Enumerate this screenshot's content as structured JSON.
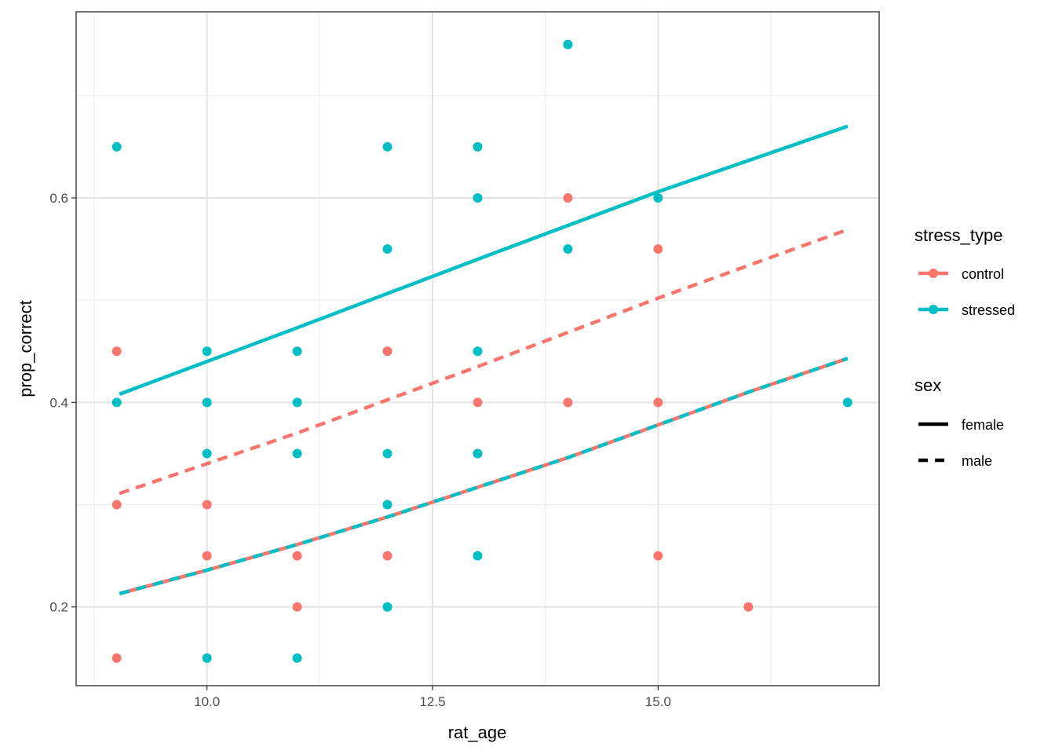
{
  "chart_data": {
    "type": "scatter",
    "xlabel": "rat_age",
    "ylabel": "prop_correct",
    "xlim": [
      8.55,
      17.45
    ],
    "ylim": [
      0.123,
      0.782
    ],
    "x_ticks": [
      10.0,
      12.5,
      15.0
    ],
    "x_tick_labels": [
      "10.0",
      "12.5",
      "15.0"
    ],
    "y_ticks": [
      0.2,
      0.4,
      0.6
    ],
    "y_tick_labels": [
      "0.2",
      "0.4",
      "0.6"
    ],
    "x_minor_ticks": [
      8.75,
      11.25,
      13.75,
      16.25
    ],
    "y_minor_ticks": [
      0.3,
      0.5,
      0.7
    ],
    "grid": true,
    "legend_position": "right",
    "colors": {
      "control": "#F8766D",
      "stressed": "#00BFC4"
    },
    "legends": [
      {
        "title": "stress_type",
        "entries": [
          {
            "label": "control",
            "color": "#F8766D",
            "linetype": "solid"
          },
          {
            "label": "stressed",
            "color": "#00BFC4",
            "linetype": "solid"
          }
        ]
      },
      {
        "title": "sex",
        "entries": [
          {
            "label": "female",
            "color": "#000000",
            "linetype": "solid"
          },
          {
            "label": "male",
            "color": "#000000",
            "linetype": "dashed"
          }
        ]
      }
    ],
    "points": [
      {
        "group": "stressed",
        "x": 9,
        "y": 0.65
      },
      {
        "group": "stressed",
        "x": 9,
        "y": 0.4
      },
      {
        "group": "control",
        "x": 9,
        "y": 0.45
      },
      {
        "group": "control",
        "x": 9,
        "y": 0.3
      },
      {
        "group": "control",
        "x": 9,
        "y": 0.15
      },
      {
        "group": "stressed",
        "x": 10,
        "y": 0.45
      },
      {
        "group": "stressed",
        "x": 10,
        "y": 0.4
      },
      {
        "group": "stressed",
        "x": 10,
        "y": 0.35
      },
      {
        "group": "control",
        "x": 10,
        "y": 0.3
      },
      {
        "group": "control",
        "x": 10,
        "y": 0.25
      },
      {
        "group": "stressed",
        "x": 10,
        "y": 0.15
      },
      {
        "group": "stressed",
        "x": 11,
        "y": 0.45
      },
      {
        "group": "stressed",
        "x": 11,
        "y": 0.4
      },
      {
        "group": "stressed",
        "x": 11,
        "y": 0.35
      },
      {
        "group": "control",
        "x": 11,
        "y": 0.25
      },
      {
        "group": "control",
        "x": 11,
        "y": 0.2
      },
      {
        "group": "stressed",
        "x": 11,
        "y": 0.15
      },
      {
        "group": "stressed",
        "x": 12,
        "y": 0.65
      },
      {
        "group": "stressed",
        "x": 12,
        "y": 0.55
      },
      {
        "group": "stressed",
        "x": 12,
        "y": 0.45
      },
      {
        "group": "control",
        "x": 12,
        "y": 0.45
      },
      {
        "group": "stressed",
        "x": 12,
        "y": 0.35
      },
      {
        "group": "stressed",
        "x": 12,
        "y": 0.3
      },
      {
        "group": "control",
        "x": 12,
        "y": 0.25
      },
      {
        "group": "stressed",
        "x": 12,
        "y": 0.2
      },
      {
        "group": "stressed",
        "x": 13,
        "y": 0.65
      },
      {
        "group": "stressed",
        "x": 13,
        "y": 0.6
      },
      {
        "group": "stressed",
        "x": 13,
        "y": 0.45
      },
      {
        "group": "control",
        "x": 13,
        "y": 0.4
      },
      {
        "group": "control",
        "x": 13,
        "y": 0.35
      },
      {
        "group": "stressed",
        "x": 13,
        "y": 0.35
      },
      {
        "group": "stressed",
        "x": 13,
        "y": 0.25
      },
      {
        "group": "stressed",
        "x": 14,
        "y": 0.75
      },
      {
        "group": "control",
        "x": 14,
        "y": 0.6
      },
      {
        "group": "stressed",
        "x": 14,
        "y": 0.55
      },
      {
        "group": "control",
        "x": 14,
        "y": 0.4
      },
      {
        "group": "stressed",
        "x": 15,
        "y": 0.6
      },
      {
        "group": "control",
        "x": 15,
        "y": 0.55
      },
      {
        "group": "control",
        "x": 15,
        "y": 0.4
      },
      {
        "group": "control",
        "x": 15,
        "y": 0.25
      },
      {
        "group": "control",
        "x": 16,
        "y": 0.2
      },
      {
        "group": "stressed",
        "x": 17.1,
        "y": 0.4
      }
    ],
    "lines": [
      {
        "stress_type": "stressed",
        "sex": "female",
        "color": "#00BFC4",
        "dashed": false,
        "x": [
          9.03,
          11,
          13,
          15,
          17.1
        ],
        "y": [
          0.408,
          0.473,
          0.54,
          0.606,
          0.67
        ]
      },
      {
        "stress_type": "control",
        "sex": "male",
        "color": "#F8766D",
        "dashed": true,
        "x": [
          9.03,
          11,
          13,
          15,
          17.1
        ],
        "y": [
          0.311,
          0.37,
          0.435,
          0.502,
          0.569
        ]
      },
      {
        "stress_type": "control",
        "sex": "female",
        "color": "#F8766D",
        "dashed": false,
        "x": [
          9.03,
          10,
          11,
          12,
          13,
          14,
          15,
          16,
          17.1
        ],
        "y": [
          0.213,
          0.236,
          0.261,
          0.288,
          0.317,
          0.346,
          0.378,
          0.41,
          0.443
        ]
      },
      {
        "stress_type": "stressed",
        "sex": "male",
        "color": "#00BFC4",
        "dashed": true,
        "x": [
          9.03,
          10,
          11,
          12,
          13,
          14,
          15,
          16,
          17.1
        ],
        "y": [
          0.213,
          0.236,
          0.261,
          0.288,
          0.317,
          0.346,
          0.378,
          0.41,
          0.443
        ]
      }
    ]
  }
}
